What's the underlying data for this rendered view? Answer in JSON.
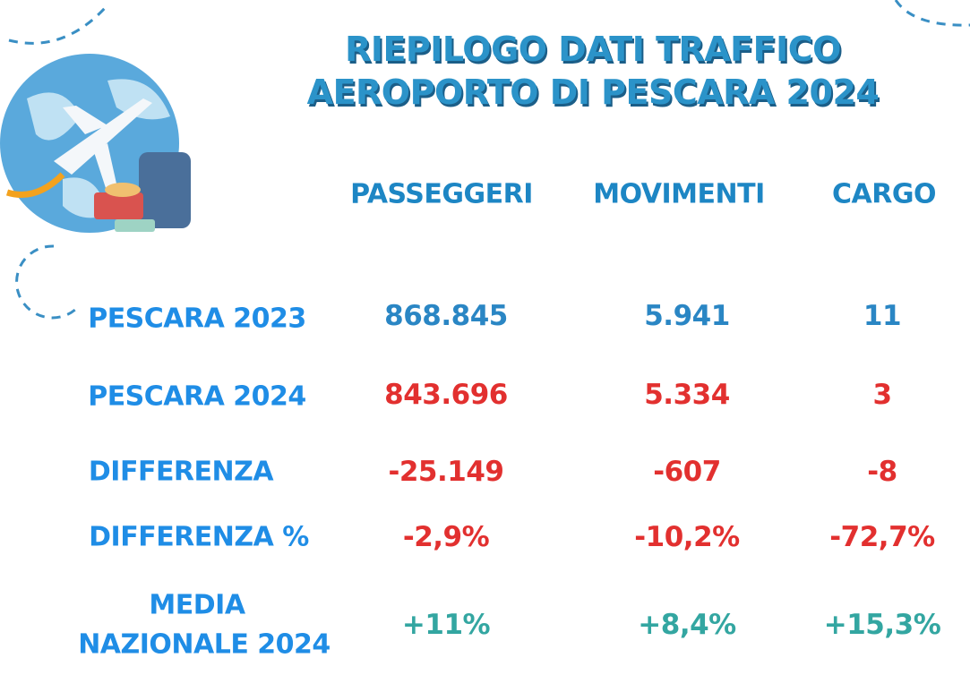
{
  "header": {
    "title": [
      "RIEPILOGO DATI TRAFFICO",
      "AEROPORTO DI PESCARA 2024"
    ]
  },
  "table": {
    "columns": [
      "PASSEGGERI",
      "MOVIMENTI",
      "CARGO"
    ],
    "rows": [
      {
        "label": [
          "PESCARA 2023"
        ],
        "cells": [
          "868.845",
          "5.941",
          "11"
        ]
      },
      {
        "label": [
          "PESCARA 2024"
        ],
        "cells": [
          "843.696",
          "5.334",
          "3"
        ]
      },
      {
        "label": [
          "DIFFERENZA"
        ],
        "cells": [
          "-25.149",
          "-607",
          "-8"
        ]
      },
      {
        "label": [
          "DIFFERENZA %"
        ],
        "cells": [
          "-2,9%",
          "-10,2%",
          "-72,7%"
        ]
      },
      {
        "label": [
          "MEDIA",
          "NAZIONALE 2024"
        ],
        "cells": [
          "+11%",
          "+8,4%",
          "+15,3%"
        ]
      }
    ]
  }
}
